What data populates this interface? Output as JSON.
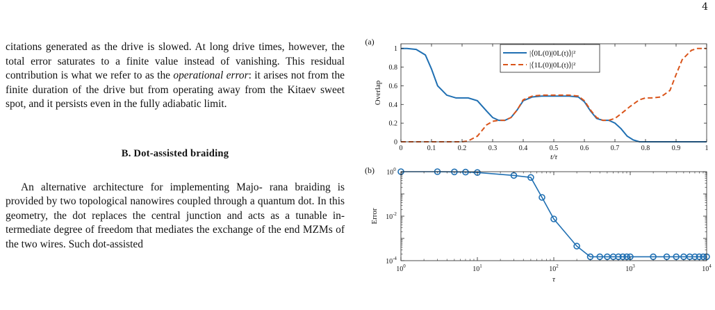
{
  "page": {
    "number": "4"
  },
  "text": {
    "para1_lines": [
      "citations generated as the drive is slowed. At long drive",
      "times, however, the total error saturates to a finite value",
      "instead of vanishing. This residual contribution is what",
      "we refer to as the ",
      "operational error",
      ": it arises not from",
      "the finite duration of the drive but from operating away",
      "from the Kitaev sweet spot, and it persists even in the",
      "fully adiabatic limit."
    ],
    "section_heading": "B.   Dot-assisted braiding",
    "para2_lines": [
      "An alternative architecture for implementing Majo-",
      "rana braiding is provided by two topological nanowires",
      "coupled through a quantum dot. In this geometry, the",
      "dot replaces the central junction and acts as a tunable in-",
      "termediate degree of freedom that mediates the exchange",
      "of the end MZMs of the two wires. Such dot-assisted"
    ]
  },
  "figure": {
    "panel_a_label": "(a)",
    "panel_b_label": "(b)",
    "colors": {
      "blue": "#1f6fb2",
      "orange": "#d9541a"
    }
  },
  "chart_data": [
    {
      "type": "line",
      "panel": "(a)",
      "xlabel": "t/τ",
      "ylabel": "Overlap",
      "xlim": [
        0,
        1
      ],
      "ylim": [
        0,
        1.05
      ],
      "xticks": [
        "0",
        "0.1",
        "0.2",
        "0.3",
        "0.4",
        "0.5",
        "0.6",
        "0.7",
        "0.8",
        "0.9",
        "1"
      ],
      "yticks": [
        "0",
        "0.2",
        "0.4",
        "0.6",
        "0.8",
        "1"
      ],
      "legend_position": "top-right",
      "series": [
        {
          "name": "|⟨0L(0)|0L(t)⟩|²",
          "style": "solid",
          "color": "#1f6fb2",
          "x": [
            0,
            0.02,
            0.05,
            0.08,
            0.1,
            0.12,
            0.15,
            0.18,
            0.2,
            0.22,
            0.25,
            0.28,
            0.3,
            0.32,
            0.34,
            0.36,
            0.38,
            0.4,
            0.43,
            0.46,
            0.5,
            0.55,
            0.58,
            0.6,
            0.62,
            0.64,
            0.66,
            0.68,
            0.7,
            0.72,
            0.74,
            0.76,
            0.78,
            0.8,
            0.85,
            0.9,
            1.0
          ],
          "y": [
            1.0,
            1.0,
            0.99,
            0.93,
            0.78,
            0.6,
            0.5,
            0.47,
            0.47,
            0.47,
            0.44,
            0.33,
            0.26,
            0.23,
            0.23,
            0.26,
            0.34,
            0.44,
            0.48,
            0.49,
            0.49,
            0.49,
            0.48,
            0.43,
            0.33,
            0.25,
            0.23,
            0.23,
            0.2,
            0.14,
            0.06,
            0.02,
            0.0,
            0.0,
            0.0,
            0.0,
            0.0
          ]
        },
        {
          "name": "|⟨1L(0)|0L(t)⟩|²",
          "style": "dashed",
          "color": "#d9541a",
          "x": [
            0,
            0.1,
            0.2,
            0.22,
            0.25,
            0.28,
            0.3,
            0.32,
            0.34,
            0.36,
            0.38,
            0.4,
            0.43,
            0.46,
            0.5,
            0.55,
            0.58,
            0.6,
            0.62,
            0.64,
            0.66,
            0.68,
            0.7,
            0.72,
            0.75,
            0.78,
            0.8,
            0.82,
            0.85,
            0.88,
            0.9,
            0.92,
            0.95,
            0.97,
            1.0
          ],
          "y": [
            0.0,
            0.0,
            0.0,
            0.01,
            0.06,
            0.18,
            0.22,
            0.23,
            0.23,
            0.26,
            0.34,
            0.45,
            0.49,
            0.5,
            0.5,
            0.5,
            0.49,
            0.44,
            0.34,
            0.26,
            0.23,
            0.23,
            0.25,
            0.3,
            0.38,
            0.45,
            0.47,
            0.47,
            0.48,
            0.55,
            0.72,
            0.88,
            0.98,
            1.0,
            1.0
          ]
        }
      ]
    },
    {
      "type": "line",
      "panel": "(b)",
      "xlabel": "τ",
      "ylabel": "Error",
      "xscale": "log",
      "yscale": "log",
      "xlim": [
        1,
        10000
      ],
      "ylim": [
        0.0001,
        1
      ],
      "series": [
        {
          "color": "#1f6fb2",
          "marker": "circle",
          "x": [
            1,
            3,
            5,
            7,
            10,
            30,
            50,
            70,
            100,
            200,
            300,
            400,
            500,
            600,
            700,
            800,
            900,
            1000,
            2000,
            3000,
            4000,
            5000,
            6000,
            7000,
            8000,
            9000,
            10000
          ],
          "y": [
            1.0,
            1.0,
            0.98,
            0.96,
            0.92,
            0.68,
            0.55,
            0.07,
            0.0075,
            0.00045,
            0.00015,
            0.00015,
            0.00015,
            0.00015,
            0.00015,
            0.00015,
            0.00015,
            0.00015,
            0.00015,
            0.00015,
            0.00015,
            0.00015,
            0.00015,
            0.00015,
            0.00015,
            0.00015,
            0.00015
          ]
        }
      ]
    }
  ]
}
